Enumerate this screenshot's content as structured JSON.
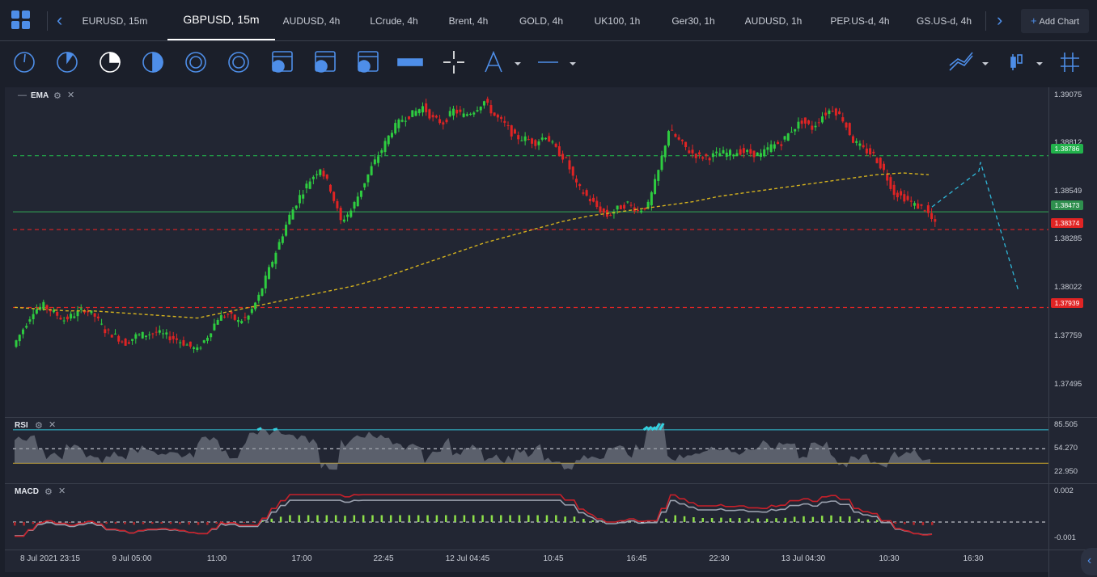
{
  "tabs": [
    {
      "label": "EURUSD, 15m",
      "left": 0
    },
    {
      "label": "GBPUSD, 15m",
      "active": true
    },
    {
      "label": "AUDUSD, 4h"
    },
    {
      "label": "LCrude, 4h"
    },
    {
      "label": "Brent, 4h"
    },
    {
      "label": "GOLD, 4h"
    },
    {
      "label": "UK100, 1h"
    },
    {
      "label": "Ger30, 1h"
    },
    {
      "label": "AUDUSD, 1h"
    },
    {
      "label": "PEP.US-d, 4h"
    },
    {
      "label": "GS.US-d, 4h"
    }
  ],
  "add_chart_label": "Add Chart",
  "toolbar": {
    "timeframes": [
      "1m",
      "5m",
      "15m",
      "30m",
      "1h",
      "4h",
      "D",
      "W",
      "M"
    ],
    "active_timeframe": "15m"
  },
  "main_pane": {
    "title": "EMA"
  },
  "rsi_pane": {
    "title": "RSI",
    "levels": [
      "85.505",
      "54.270",
      "22.950"
    ]
  },
  "macd_pane": {
    "title": "MACD",
    "levels": [
      "0.002",
      "-0.001"
    ]
  },
  "price_axis": [
    "1.39075",
    "1.38812",
    "1.38549",
    "1.38285",
    "1.38022",
    "1.37759",
    "1.37495"
  ],
  "price_tags": [
    {
      "value": "1.38786",
      "color": "#22b24c"
    },
    {
      "value": "1.38473",
      "color": "#2f8f4e"
    },
    {
      "value": "1.38374",
      "color": "#e02424"
    },
    {
      "value": "1.37939",
      "color": "#e02424"
    }
  ],
  "time_axis": [
    "8 Jul 2021 23:15",
    "9 Jul 05:00",
    "11:00",
    "17:00",
    "22:45",
    "12 Jul 04:45",
    "10:45",
    "16:45",
    "22:30",
    "13 Jul 04:30",
    "10:30",
    "16:30"
  ],
  "colors": {
    "accent": "#4e8ee8",
    "up": "#2ecc40",
    "down": "#e02424",
    "ema": "#d4b21e",
    "rsi_fill": "#33d1e0",
    "forecast": "#2fb7d8"
  },
  "chart_data": {
    "type": "line",
    "symbol": "GBPUSD, 15m",
    "y_range": [
      1.374,
      1.3915
    ],
    "horizontal_lines": [
      {
        "price": 1.38786,
        "color": "#22b24c",
        "style": "dashed"
      },
      {
        "price": 1.38473,
        "color": "#2f8f4e",
        "style": "solid"
      },
      {
        "price": 1.38374,
        "color": "#e02424",
        "style": "dashed"
      },
      {
        "price": 1.37939,
        "color": "#e02424",
        "style": "dashed"
      }
    ],
    "price_path": [
      1.3772,
      1.3782,
      1.3792,
      1.3795,
      1.3791,
      1.3787,
      1.379,
      1.3793,
      1.3789,
      1.3781,
      1.3778,
      1.3774,
      1.3778,
      1.3779,
      1.378,
      1.3778,
      1.3776,
      1.3773,
      1.377,
      1.3778,
      1.3788,
      1.379,
      1.3786,
      1.3789,
      1.38,
      1.3815,
      1.383,
      1.3845,
      1.3856,
      1.3865,
      1.3872,
      1.386,
      1.3842,
      1.3848,
      1.386,
      1.3872,
      1.3882,
      1.3893,
      1.3899,
      1.3902,
      1.3906,
      1.3899,
      1.3897,
      1.3904,
      1.3901,
      1.3904,
      1.3909,
      1.3901,
      1.3896,
      1.3889,
      1.3888,
      1.3886,
      1.389,
      1.3882,
      1.3876,
      1.3862,
      1.3856,
      1.385,
      1.3845,
      1.3849,
      1.3852,
      1.3848,
      1.3851,
      1.387,
      1.3893,
      1.3887,
      1.3881,
      1.3878,
      1.3878,
      1.388,
      1.388,
      1.3881,
      1.388,
      1.3879,
      1.3884,
      1.3886,
      1.3893,
      1.3898,
      1.3894,
      1.3901,
      1.3905,
      1.3899,
      1.3887,
      1.3882,
      1.3879,
      1.387,
      1.3858,
      1.3855,
      1.3851,
      1.3849,
      1.384
    ],
    "ema_path": [
      1.3794,
      1.3793,
      1.3792,
      1.3792,
      1.3791,
      1.379,
      1.3789,
      1.3788,
      1.3791,
      1.3794,
      1.3797,
      1.38,
      1.3803,
      1.3806,
      1.381,
      1.3815,
      1.382,
      1.3825,
      1.383,
      1.3834,
      1.3838,
      1.3842,
      1.3845,
      1.3847,
      1.3849,
      1.3851,
      1.3853,
      1.3856,
      1.3858,
      1.386,
      1.3862,
      1.3864,
      1.3866,
      1.3868,
      1.3869,
      1.3868
    ],
    "forecast_path": [
      1.385,
      1.387,
      1.3875,
      1.3803
    ]
  }
}
